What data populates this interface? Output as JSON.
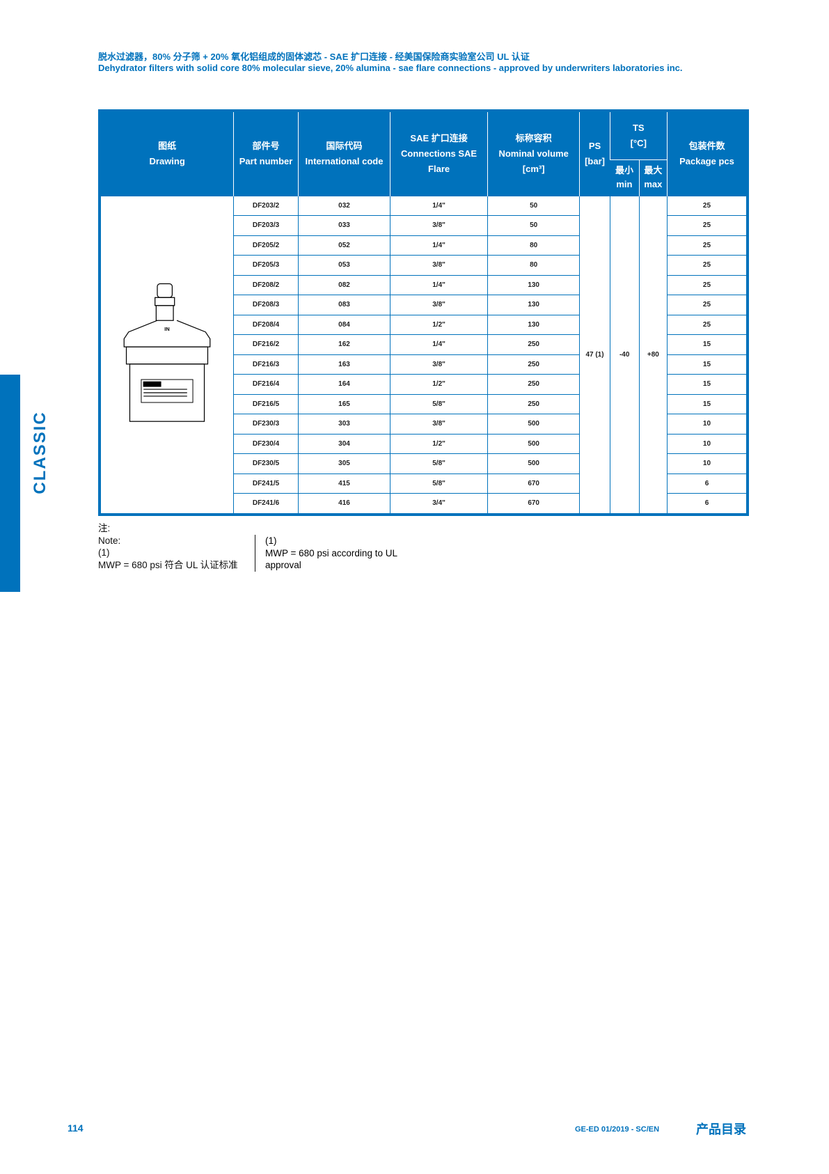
{
  "header": {
    "title_cn": "脱水过滤器，80% 分子筛 + 20% 氧化铝组成的固体滤芯 - SAE 扩口连接 - 经美国保险商实验室公司 UL 认证",
    "title_en": "Dehydrator filters with solid core 80% molecular sieve, 20% alumina - sae flare connections - approved by underwriters laboratories inc."
  },
  "side_label": "CLASSIC",
  "table": {
    "columns": {
      "drawing": {
        "cn": "图纸",
        "en": "Drawing"
      },
      "part": {
        "cn": "部件号",
        "en": "Part number"
      },
      "intl": {
        "cn": "国际代码",
        "en": "International code"
      },
      "sae": {
        "cn": "SAE 扩口连接",
        "en": "Connections SAE Flare"
      },
      "volume": {
        "cn": "标称容积",
        "en": "Nominal volume",
        "unit": "[cm³]"
      },
      "ps": {
        "label": "PS",
        "unit": "[bar]"
      },
      "ts": {
        "label": "TS",
        "unit": "[°C]",
        "min_cn": "最小",
        "min_en": "min",
        "max_cn": "最大",
        "max_en": "max"
      },
      "pkg": {
        "cn": "包装件数",
        "en": "Package pcs"
      }
    },
    "drawing_label": "IN",
    "ps_value": "47 (1)",
    "ts_min": "-40",
    "ts_max": "+80",
    "rows": [
      [
        "DF203/2",
        "032",
        "1/4\"",
        "50",
        "25"
      ],
      [
        "DF203/3",
        "033",
        "3/8\"",
        "50",
        "25"
      ],
      [
        "DF205/2",
        "052",
        "1/4\"",
        "80",
        "25"
      ],
      [
        "DF205/3",
        "053",
        "3/8\"",
        "80",
        "25"
      ],
      [
        "DF208/2",
        "082",
        "1/4\"",
        "130",
        "25"
      ],
      [
        "DF208/3",
        "083",
        "3/8\"",
        "130",
        "25"
      ],
      [
        "DF208/4",
        "084",
        "1/2\"",
        "130",
        "25"
      ],
      [
        "DF216/2",
        "162",
        "1/4\"",
        "250",
        "15"
      ],
      [
        "DF216/3",
        "163",
        "3/8\"",
        "250",
        "15"
      ],
      [
        "DF216/4",
        "164",
        "1/2\"",
        "250",
        "15"
      ],
      [
        "DF216/5",
        "165",
        "5/8\"",
        "250",
        "15"
      ],
      [
        "DF230/3",
        "303",
        "3/8\"",
        "500",
        "10"
      ],
      [
        "DF230/4",
        "304",
        "1/2\"",
        "500",
        "10"
      ],
      [
        "DF230/5",
        "305",
        "5/8\"",
        "500",
        "10"
      ],
      [
        "DF241/5",
        "415",
        "5/8\"",
        "670",
        "6"
      ],
      [
        "DF241/6",
        "416",
        "3/4\"",
        "670",
        "6"
      ]
    ]
  },
  "notes": {
    "cn_label": "注:",
    "en_label": "Note:",
    "ref": "(1)",
    "cn_text": "MWP = 680 psi 符合 UL 认证标准",
    "en_ref": "(1)",
    "en_text_1": "MWP = 680 psi according to UL",
    "en_text_2": "approval"
  },
  "footer": {
    "page": "114",
    "doc_code": "GE-ED 01/2019 - SC/EN",
    "catalog": "产品目录"
  },
  "colors": {
    "brand": "#0072bc"
  }
}
